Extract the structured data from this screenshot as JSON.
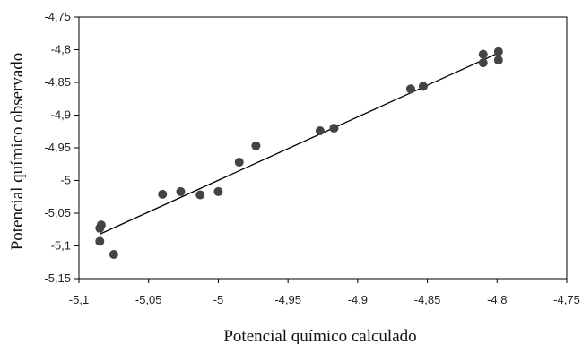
{
  "chart_data": {
    "type": "scatter",
    "title": "",
    "xlabel": "Potencial químico calculado",
    "ylabel": "Potencial químico observado",
    "xlim": [
      -5.1,
      -4.75
    ],
    "ylim": [
      -5.15,
      -4.75
    ],
    "x_ticks": [
      -5.1,
      -5.05,
      -5.0,
      -4.95,
      -4.9,
      -4.85,
      -4.8,
      -4.75
    ],
    "x_tick_labels": [
      "-5,1",
      "-5,05",
      "-5",
      "-4,95",
      "-4,9",
      "-4,85",
      "-4,8",
      "-4,75"
    ],
    "y_ticks": [
      -4.75,
      -4.8,
      -4.85,
      -4.9,
      -4.95,
      -5.0,
      -5.05,
      -5.1,
      -5.15
    ],
    "y_tick_labels": [
      "-4,75",
      "-4,8",
      "-4,85",
      "-4,9",
      "-4,95",
      "-5",
      "-5,05",
      "-5,1",
      "-5,15"
    ],
    "grid": false,
    "legend": "none",
    "series": [
      {
        "points": [
          {
            "x": -5.085,
            "y": -5.093
          },
          {
            "x": -5.085,
            "y": -5.073
          },
          {
            "x": -5.084,
            "y": -5.068
          },
          {
            "x": -5.075,
            "y": -5.113
          },
          {
            "x": -5.04,
            "y": -5.021
          },
          {
            "x": -5.027,
            "y": -5.017
          },
          {
            "x": -5.013,
            "y": -5.022
          },
          {
            "x": -5.0,
            "y": -5.017
          },
          {
            "x": -4.985,
            "y": -4.972
          },
          {
            "x": -4.973,
            "y": -4.947
          },
          {
            "x": -4.927,
            "y": -4.924
          },
          {
            "x": -4.917,
            "y": -4.92
          },
          {
            "x": -4.862,
            "y": -4.86
          },
          {
            "x": -4.853,
            "y": -4.856
          },
          {
            "x": -4.81,
            "y": -4.807
          },
          {
            "x": -4.81,
            "y": -4.82
          },
          {
            "x": -4.799,
            "y": -4.803
          },
          {
            "x": -4.799,
            "y": -4.816
          }
        ]
      }
    ],
    "trendline": {
      "x": [
        -5.085,
        -4.799
      ],
      "y": [
        -5.082,
        -4.805
      ]
    },
    "colors": {
      "marker": "#444444",
      "line": "#000000",
      "axis": "#000000"
    }
  }
}
